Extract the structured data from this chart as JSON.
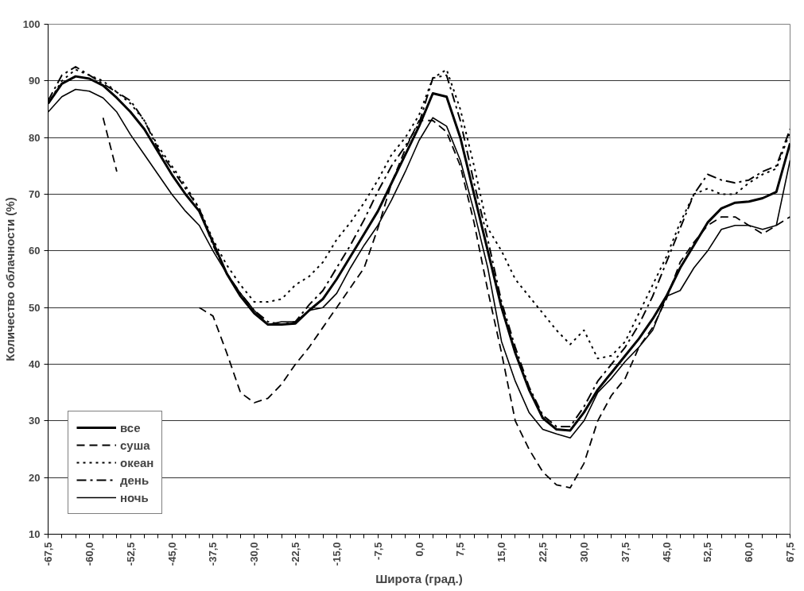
{
  "chart_data": {
    "type": "line",
    "xlabel": "Широта (град.)",
    "ylabel": "Количество облачности (%)",
    "x": [
      -67.5,
      -65,
      -62.5,
      -60,
      -57.5,
      -55,
      -52.5,
      -50,
      -47.5,
      -45,
      -42.5,
      -40,
      -37.5,
      -35,
      -32.5,
      -30,
      -27.5,
      -25,
      -22.5,
      -20,
      -17.5,
      -15,
      -12.5,
      -10,
      -7.5,
      -5,
      -2.5,
      0,
      2.5,
      5,
      7.5,
      10,
      12.5,
      15,
      17.5,
      20,
      22.5,
      25,
      27.5,
      30,
      32.5,
      35,
      37.5,
      40,
      42.5,
      45,
      47.5,
      50,
      52.5,
      55,
      57.5,
      60,
      62.5,
      65,
      67.5
    ],
    "series": [
      {
        "name": "все",
        "color": "#000000",
        "line_style": "solid",
        "values": [
          86,
          89.5,
          90.8,
          90.4,
          89.2,
          87,
          84.5,
          81.5,
          77.5,
          73.5,
          70,
          67,
          61.5,
          56,
          52,
          49,
          47,
          47,
          47.2,
          49.5,
          51.5,
          55,
          59,
          63,
          67,
          72,
          77,
          82,
          87.8,
          87.2,
          80,
          70,
          60,
          50,
          42,
          35.5,
          30.5,
          28.5,
          28.3,
          31.5,
          35.5,
          38.5,
          41.5,
          44.5,
          48,
          52,
          57,
          61,
          65,
          67.5,
          68.5,
          68.7,
          69.3,
          70.4,
          79
        ]
      },
      {
        "name": "суша",
        "color": "#000000",
        "line_style": "dashed",
        "values": [
          null,
          null,
          null,
          null,
          83.5,
          74,
          null,
          null,
          null,
          null,
          null,
          50,
          48.5,
          42,
          35,
          33.2,
          34,
          36.5,
          40,
          43,
          46.5,
          50,
          53.5,
          57,
          64,
          72,
          78,
          83,
          83,
          81,
          75,
          65,
          53,
          42,
          30,
          25,
          21,
          18.7,
          18.2,
          22.5,
          30,
          34.5,
          37.5,
          43,
          46.5,
          51.5,
          58,
          61.5,
          64.5,
          66,
          66,
          64.5,
          63,
          64.5,
          66
        ]
      },
      {
        "name": "океан",
        "color": "#000000",
        "line_style": "dotted",
        "values": [
          86,
          90,
          92,
          91,
          90,
          88,
          86,
          83,
          78.5,
          75,
          71.5,
          67.5,
          62,
          57.5,
          54,
          51,
          51,
          51.5,
          54,
          55.5,
          58,
          62,
          65,
          68.5,
          72.5,
          77,
          80,
          84,
          90.5,
          92,
          85,
          75,
          64,
          60,
          55,
          52,
          49,
          46,
          43.5,
          46,
          41,
          41.5,
          44,
          49,
          54,
          59,
          65,
          70,
          71,
          70,
          70,
          72,
          73.5,
          74.5,
          81
        ]
      },
      {
        "name": "день",
        "color": "#000000",
        "line_style": "dashdot",
        "values": [
          86.5,
          91,
          92.5,
          91,
          89.5,
          88,
          86.5,
          83,
          78,
          74.5,
          71,
          67.5,
          61,
          56,
          52.5,
          49.5,
          47.5,
          47,
          47.5,
          50.5,
          53,
          57,
          61,
          65.5,
          70.5,
          75,
          78.5,
          82.5,
          90.5,
          91,
          83,
          72,
          62,
          51,
          43,
          36,
          31,
          29,
          29,
          32.5,
          37,
          40,
          43,
          47,
          52,
          58,
          64,
          70,
          73.5,
          72.5,
          72,
          72.5,
          74,
          75,
          81.5
        ]
      },
      {
        "name": "ночь",
        "color": "#000000",
        "line_style": "solid",
        "values": [
          84.5,
          87.2,
          88.5,
          88.2,
          87,
          84.5,
          80.5,
          77,
          73.5,
          70,
          67,
          64.5,
          60,
          56,
          52.5,
          49.5,
          47,
          47.5,
          47.5,
          49.5,
          50,
          52.5,
          57,
          61,
          64.5,
          69,
          74,
          79.5,
          83.5,
          82,
          76,
          67,
          57,
          44,
          37,
          31.5,
          28.5,
          27.7,
          27,
          30,
          35,
          37.5,
          40.5,
          43,
          46,
          52,
          53,
          57,
          60,
          63.8,
          64.5,
          64.5,
          63.8,
          64.5,
          76
        ]
      }
    ],
    "xlim": [
      -67.5,
      67.5
    ],
    "xticks": [
      {
        "value": -67.5,
        "label": "-67,5"
      },
      {
        "value": -65,
        "label": null
      },
      {
        "value": -62.5,
        "label": null
      },
      {
        "value": -60,
        "label": "-60,0"
      },
      {
        "value": -57.5,
        "label": null
      },
      {
        "value": -55,
        "label": null
      },
      {
        "value": -52.5,
        "label": "-52,5"
      },
      {
        "value": -50,
        "label": null
      },
      {
        "value": -47.5,
        "label": null
      },
      {
        "value": -45,
        "label": "-45,0"
      },
      {
        "value": -42.5,
        "label": null
      },
      {
        "value": -40,
        "label": null
      },
      {
        "value": -37.5,
        "label": "-37,5"
      },
      {
        "value": -35,
        "label": null
      },
      {
        "value": -32.5,
        "label": null
      },
      {
        "value": -30,
        "label": "-30,0"
      },
      {
        "value": -27.5,
        "label": null
      },
      {
        "value": -25,
        "label": null
      },
      {
        "value": -22.5,
        "label": "-22,5"
      },
      {
        "value": -20,
        "label": null
      },
      {
        "value": -17.5,
        "label": null
      },
      {
        "value": -15,
        "label": "-15,0"
      },
      {
        "value": -12.5,
        "label": null
      },
      {
        "value": -10,
        "label": null
      },
      {
        "value": -7.5,
        "label": "-7,5"
      },
      {
        "value": -5,
        "label": null
      },
      {
        "value": -2.5,
        "label": null
      },
      {
        "value": 0,
        "label": "0,0"
      },
      {
        "value": 2.5,
        "label": null
      },
      {
        "value": 5,
        "label": null
      },
      {
        "value": 7.5,
        "label": "7,5"
      },
      {
        "value": 10,
        "label": null
      },
      {
        "value": 12.5,
        "label": null
      },
      {
        "value": 15,
        "label": "15,0"
      },
      {
        "value": 17.5,
        "label": null
      },
      {
        "value": 20,
        "label": null
      },
      {
        "value": 22.5,
        "label": "22,5"
      },
      {
        "value": 25,
        "label": null
      },
      {
        "value": 27.5,
        "label": null
      },
      {
        "value": 30,
        "label": "30,0"
      },
      {
        "value": 32.5,
        "label": null
      },
      {
        "value": 35,
        "label": null
      },
      {
        "value": 37.5,
        "label": "37,5"
      },
      {
        "value": 40,
        "label": null
      },
      {
        "value": 42.5,
        "label": null
      },
      {
        "value": 45,
        "label": "45,0"
      },
      {
        "value": 47.5,
        "label": null
      },
      {
        "value": 50,
        "label": null
      },
      {
        "value": 52.5,
        "label": "52,5"
      },
      {
        "value": 55,
        "label": null
      },
      {
        "value": 57.5,
        "label": null
      },
      {
        "value": 60,
        "label": "60,0"
      },
      {
        "value": 62.5,
        "label": null
      },
      {
        "value": 65,
        "label": null
      },
      {
        "value": 67.5,
        "label": "67,5"
      }
    ],
    "ylim": [
      10,
      100
    ],
    "yticks": [
      10,
      20,
      30,
      40,
      50,
      60,
      70,
      80,
      90,
      100
    ],
    "grid": "y",
    "legend": "bottom left",
    "marker": "none"
  }
}
